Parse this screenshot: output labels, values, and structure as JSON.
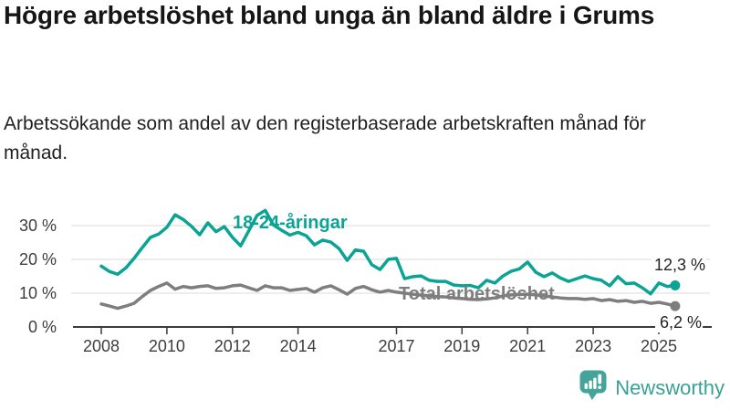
{
  "header": {
    "title": "Högre arbetslöshet bland unga än bland äldre i Grums",
    "subtitle": "Arbetssökande som andel av den registerbaserade arbetskraften månad för månad."
  },
  "chart_data": {
    "type": "line",
    "title": "Högre arbetslöshet bland unga än bland äldre i Grums",
    "xlabel": "",
    "ylabel": "",
    "x_unit": "year (monthly series, values approximated quarterly)",
    "x": [
      2008,
      2008.25,
      2008.5,
      2008.75,
      2009,
      2009.25,
      2009.5,
      2009.75,
      2010,
      2010.25,
      2010.5,
      2010.75,
      2011,
      2011.25,
      2011.5,
      2011.75,
      2012,
      2012.25,
      2012.5,
      2012.75,
      2013,
      2013.25,
      2013.5,
      2013.75,
      2014,
      2014.25,
      2014.5,
      2014.75,
      2015,
      2015.25,
      2015.5,
      2015.75,
      2016,
      2016.25,
      2016.5,
      2016.75,
      2017,
      2017.25,
      2017.5,
      2017.75,
      2018,
      2018.25,
      2018.5,
      2018.75,
      2019,
      2019.25,
      2019.5,
      2019.75,
      2020,
      2020.25,
      2020.5,
      2020.75,
      2021,
      2021.25,
      2021.5,
      2021.75,
      2022,
      2022.25,
      2022.5,
      2022.75,
      2023,
      2023.25,
      2023.5,
      2023.75,
      2024,
      2024.25,
      2024.5,
      2024.75,
      2025,
      2025.25,
      2025.5
    ],
    "series": [
      {
        "name": "18-24-åringar",
        "color": "#0ba394",
        "end_label": "12,3 %",
        "end_value": 12.3,
        "values": [
          18.0,
          16.4,
          15.6,
          17.5,
          20.3,
          23.5,
          26.5,
          27.5,
          29.5,
          33.2,
          31.8,
          29.8,
          27.3,
          30.8,
          28.2,
          29.7,
          26.5,
          24.0,
          28.5,
          33.0,
          34.5,
          30.2,
          28.6,
          27.2,
          28.0,
          27.0,
          24.3,
          25.7,
          25.1,
          23.2,
          19.7,
          22.8,
          22.4,
          18.4,
          17.0,
          20.0,
          20.3,
          14.3,
          14.9,
          15.1,
          13.8,
          13.5,
          13.5,
          12.4,
          12.2,
          12.3,
          11.6,
          13.8,
          13.0,
          15.1,
          16.5,
          17.2,
          19.2,
          16.2,
          14.9,
          16.0,
          14.5,
          13.5,
          14.3,
          15.1,
          14.3,
          13.8,
          12.2,
          14.9,
          12.8,
          13.0,
          11.6,
          9.8,
          13.0,
          12.0,
          12.3
        ]
      },
      {
        "name": "Total arbetslöshet",
        "color": "#7e7e7e",
        "end_label": "6,2 %",
        "end_value": 6.2,
        "values": [
          6.8,
          6.2,
          5.5,
          6.2,
          7.0,
          9.0,
          10.8,
          12.0,
          13.0,
          11.2,
          12.0,
          11.6,
          12.0,
          12.2,
          11.4,
          11.6,
          12.2,
          12.4,
          11.6,
          10.8,
          12.2,
          11.6,
          11.6,
          10.8,
          11.1,
          11.4,
          10.3,
          11.6,
          12.2,
          11.0,
          9.7,
          11.4,
          12.0,
          11.0,
          10.3,
          10.8,
          10.3,
          10.0,
          9.7,
          9.4,
          9.2,
          9.0,
          8.9,
          8.6,
          8.4,
          8.2,
          8.1,
          8.3,
          8.6,
          9.2,
          9.5,
          9.6,
          9.7,
          9.5,
          9.2,
          8.9,
          8.6,
          8.4,
          8.4,
          8.2,
          8.4,
          7.8,
          8.1,
          7.6,
          7.8,
          7.3,
          7.6,
          7.0,
          7.3,
          6.8,
          6.2
        ]
      }
    ],
    "ylim": [
      0,
      36.5
    ],
    "yticks": [
      0,
      10,
      20,
      30
    ],
    "ytick_suffix": " %",
    "xticks": [
      2008,
      2010,
      2012,
      2014,
      2017,
      2019,
      2021,
      2023,
      2025
    ],
    "grid": "horizontal",
    "legend": "inline-labels"
  },
  "footer": {
    "brand": "Newsworthy"
  },
  "colors": {
    "accent_teal": "#0ba394",
    "series_gray": "#7e7e7e",
    "gridline": "#d9d9d9",
    "axis": "#3b3b3b",
    "logo_teal": "#45a49a",
    "brand_text_teal": "#38a096"
  }
}
